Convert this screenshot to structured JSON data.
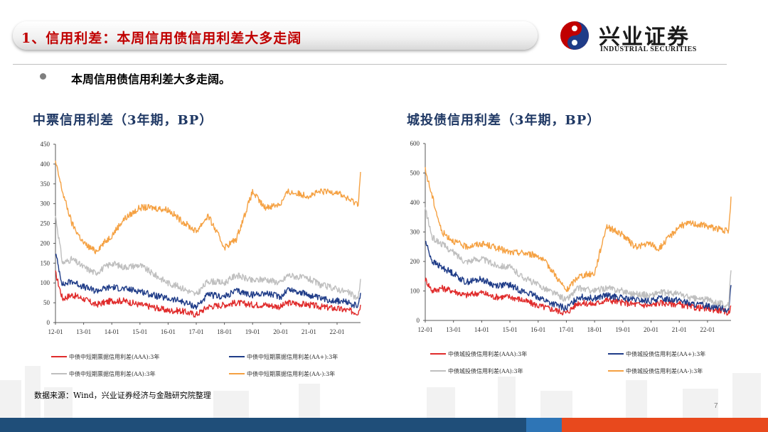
{
  "header": {
    "title": "1、信用利差：本周信用债信用利差大多走阔",
    "logo_cn": "兴业证券",
    "logo_en": "INDUSTRIAL SECURITIES"
  },
  "bullet": "本周信用债信用利差大多走阔。",
  "source": "数据来源：Wind，兴业证券经济与金融研究院整理",
  "page_number": "7",
  "colors": {
    "red": "#e02b2b",
    "navy": "#1f3c88",
    "gray": "#bfbfbf",
    "orange": "#f5a142",
    "title_red": "#c00000",
    "title_blue": "#1f3864"
  },
  "chart_data": [
    {
      "type": "line",
      "title": "中票信用利差（3年期，BP）",
      "x_ticks": [
        "12-01",
        "13-01",
        "14-01",
        "15-01",
        "16-01",
        "17-01",
        "18-01",
        "19-01",
        "20-01",
        "21-01",
        "22-01"
      ],
      "ylim": [
        0,
        450
      ],
      "y_ticks": [
        "0",
        "50",
        "100",
        "150",
        "200",
        "250",
        "300",
        "350",
        "400",
        "450"
      ],
      "legend_position": "bottom",
      "grid": false,
      "series": [
        {
          "name": "中债中短期票据信用利差(AAA):3年",
          "color": "red",
          "points": [
            [
              "12-01",
              125
            ],
            [
              "12-04",
              60
            ],
            [
              "12-08",
              70
            ],
            [
              "13-01",
              60
            ],
            [
              "13-06",
              45
            ],
            [
              "14-01",
              55
            ],
            [
              "14-06",
              55
            ],
            [
              "15-01",
              45
            ],
            [
              "15-06",
              40
            ],
            [
              "16-01",
              30
            ],
            [
              "16-06",
              30
            ],
            [
              "17-01",
              20
            ],
            [
              "17-06",
              40
            ],
            [
              "18-01",
              45
            ],
            [
              "18-06",
              50
            ],
            [
              "19-01",
              45
            ],
            [
              "19-06",
              45
            ],
            [
              "20-01",
              40
            ],
            [
              "20-04",
              50
            ],
            [
              "21-01",
              45
            ],
            [
              "21-06",
              40
            ],
            [
              "22-01",
              35
            ],
            [
              "22-06",
              30
            ],
            [
              "22-10",
              25
            ],
            [
              "22-11",
              45
            ]
          ]
        },
        {
          "name": "中债中短期票据信用利差(AA+):3年",
          "color": "navy",
          "points": [
            [
              "12-01",
              175
            ],
            [
              "12-04",
              95
            ],
            [
              "12-08",
              105
            ],
            [
              "13-01",
              90
            ],
            [
              "13-06",
              80
            ],
            [
              "14-01",
              90
            ],
            [
              "14-06",
              85
            ],
            [
              "15-01",
              80
            ],
            [
              "15-06",
              70
            ],
            [
              "16-01",
              60
            ],
            [
              "16-06",
              55
            ],
            [
              "17-01",
              40
            ],
            [
              "17-06",
              70
            ],
            [
              "18-01",
              65
            ],
            [
              "18-06",
              80
            ],
            [
              "19-01",
              70
            ],
            [
              "19-06",
              75
            ],
            [
              "20-01",
              65
            ],
            [
              "20-04",
              85
            ],
            [
              "21-01",
              70
            ],
            [
              "21-06",
              60
            ],
            [
              "22-01",
              55
            ],
            [
              "22-06",
              50
            ],
            [
              "22-10",
              40
            ],
            [
              "22-11",
              75
            ]
          ]
        },
        {
          "name": "中债中短期票据信用利差(AA):3年",
          "color": "gray",
          "points": [
            [
              "12-01",
              270
            ],
            [
              "12-04",
              150
            ],
            [
              "12-08",
              160
            ],
            [
              "13-01",
              140
            ],
            [
              "13-06",
              125
            ],
            [
              "14-01",
              150
            ],
            [
              "14-06",
              140
            ],
            [
              "15-01",
              145
            ],
            [
              "15-06",
              125
            ],
            [
              "16-01",
              100
            ],
            [
              "16-06",
              90
            ],
            [
              "17-01",
              70
            ],
            [
              "17-06",
              105
            ],
            [
              "18-01",
              100
            ],
            [
              "18-06",
              120
            ],
            [
              "19-01",
              105
            ],
            [
              "19-06",
              110
            ],
            [
              "20-01",
              100
            ],
            [
              "20-04",
              120
            ],
            [
              "21-01",
              110
            ],
            [
              "21-06",
              95
            ],
            [
              "22-01",
              85
            ],
            [
              "22-06",
              75
            ],
            [
              "22-10",
              60
            ],
            [
              "22-11",
              110
            ]
          ]
        },
        {
          "name": "中债中短期票据信用利差(AA-):3年",
          "color": "orange",
          "points": [
            [
              "12-01",
              405
            ],
            [
              "12-04",
              330
            ],
            [
              "12-08",
              250
            ],
            [
              "13-01",
              200
            ],
            [
              "13-06",
              180
            ],
            [
              "14-01",
              220
            ],
            [
              "14-06",
              260
            ],
            [
              "15-01",
              290
            ],
            [
              "15-06",
              290
            ],
            [
              "16-01",
              285
            ],
            [
              "16-06",
              260
            ],
            [
              "17-01",
              230
            ],
            [
              "17-06",
              270
            ],
            [
              "18-01",
              190
            ],
            [
              "18-06",
              210
            ],
            [
              "19-01",
              330
            ],
            [
              "19-06",
              290
            ],
            [
              "20-01",
              300
            ],
            [
              "20-04",
              330
            ],
            [
              "21-01",
              320
            ],
            [
              "21-06",
              330
            ],
            [
              "22-01",
              330
            ],
            [
              "22-06",
              310
            ],
            [
              "22-10",
              300
            ],
            [
              "22-11",
              380
            ]
          ]
        }
      ]
    },
    {
      "type": "line",
      "title": "城投债信用利差（3年期，BP）",
      "x_ticks": [
        "12-01",
        "13-01",
        "14-01",
        "15-01",
        "16-01",
        "17-01",
        "18-01",
        "19-01",
        "20-01",
        "21-01",
        "22-01"
      ],
      "ylim": [
        0,
        600
      ],
      "y_ticks": [
        "0",
        "100",
        "200",
        "300",
        "400",
        "500",
        "600"
      ],
      "legend_position": "bottom",
      "grid": false,
      "series": [
        {
          "name": "中债城投债信用利差(AAA):3年",
          "color": "red",
          "points": [
            [
              "12-01",
              140
            ],
            [
              "12-04",
              100
            ],
            [
              "12-08",
              110
            ],
            [
              "13-01",
              100
            ],
            [
              "13-06",
              85
            ],
            [
              "14-01",
              95
            ],
            [
              "14-06",
              80
            ],
            [
              "15-01",
              80
            ],
            [
              "15-06",
              70
            ],
            [
              "16-01",
              50
            ],
            [
              "16-06",
              40
            ],
            [
              "17-01",
              25
            ],
            [
              "17-06",
              60
            ],
            [
              "18-01",
              55
            ],
            [
              "18-06",
              70
            ],
            [
              "19-01",
              60
            ],
            [
              "19-06",
              55
            ],
            [
              "20-01",
              50
            ],
            [
              "20-04",
              60
            ],
            [
              "21-01",
              55
            ],
            [
              "21-06",
              45
            ],
            [
              "22-01",
              40
            ],
            [
              "22-06",
              35
            ],
            [
              "22-10",
              25
            ],
            [
              "22-11",
              50
            ]
          ]
        },
        {
          "name": "中债城投债信用利差(AA+):3年",
          "color": "navy",
          "points": [
            [
              "12-01",
              270
            ],
            [
              "12-04",
              200
            ],
            [
              "12-08",
              180
            ],
            [
              "13-01",
              160
            ],
            [
              "13-06",
              130
            ],
            [
              "14-01",
              140
            ],
            [
              "14-06",
              120
            ],
            [
              "15-01",
              120
            ],
            [
              "15-06",
              100
            ],
            [
              "16-01",
              80
            ],
            [
              "16-06",
              60
            ],
            [
              "17-01",
              40
            ],
            [
              "17-06",
              80
            ],
            [
              "18-01",
              75
            ],
            [
              "18-06",
              85
            ],
            [
              "19-01",
              75
            ],
            [
              "19-06",
              70
            ],
            [
              "20-01",
              65
            ],
            [
              "20-04",
              75
            ],
            [
              "21-01",
              70
            ],
            [
              "21-06",
              55
            ],
            [
              "22-01",
              50
            ],
            [
              "22-06",
              45
            ],
            [
              "22-10",
              35
            ],
            [
              "22-11",
              120
            ]
          ]
        },
        {
          "name": "中债城投债信用利差(AA):3年",
          "color": "gray",
          "points": [
            [
              "12-01",
              380
            ],
            [
              "12-04",
              280
            ],
            [
              "12-08",
              260
            ],
            [
              "13-01",
              230
            ],
            [
              "13-06",
              200
            ],
            [
              "14-01",
              210
            ],
            [
              "14-06",
              190
            ],
            [
              "15-01",
              180
            ],
            [
              "15-06",
              150
            ],
            [
              "16-01",
              120
            ],
            [
              "16-06",
              100
            ],
            [
              "17-01",
              70
            ],
            [
              "17-06",
              110
            ],
            [
              "18-01",
              100
            ],
            [
              "18-06",
              110
            ],
            [
              "19-01",
              100
            ],
            [
              "19-06",
              90
            ],
            [
              "20-01",
              85
            ],
            [
              "20-04",
              95
            ],
            [
              "21-01",
              90
            ],
            [
              "21-06",
              75
            ],
            [
              "22-01",
              70
            ],
            [
              "22-06",
              60
            ],
            [
              "22-10",
              50
            ],
            [
              "22-11",
              170
            ]
          ]
        },
        {
          "name": "中债城投债信用利差(AA-):3年",
          "color": "orange",
          "points": [
            [
              "12-01",
              510
            ],
            [
              "12-04",
              420
            ],
            [
              "12-08",
              300
            ],
            [
              "13-01",
              270
            ],
            [
              "13-06",
              250
            ],
            [
              "14-01",
              260
            ],
            [
              "14-06",
              250
            ],
            [
              "15-01",
              230
            ],
            [
              "15-06",
              230
            ],
            [
              "16-01",
              220
            ],
            [
              "16-06",
              180
            ],
            [
              "17-01",
              100
            ],
            [
              "17-06",
              150
            ],
            [
              "18-01",
              160
            ],
            [
              "18-06",
              320
            ],
            [
              "19-01",
              290
            ],
            [
              "19-06",
              250
            ],
            [
              "20-01",
              260
            ],
            [
              "20-04",
              240
            ],
            [
              "21-01",
              320
            ],
            [
              "21-06",
              330
            ],
            [
              "22-01",
              320
            ],
            [
              "22-06",
              310
            ],
            [
              "22-10",
              300
            ],
            [
              "22-11",
              420
            ]
          ]
        }
      ]
    }
  ]
}
